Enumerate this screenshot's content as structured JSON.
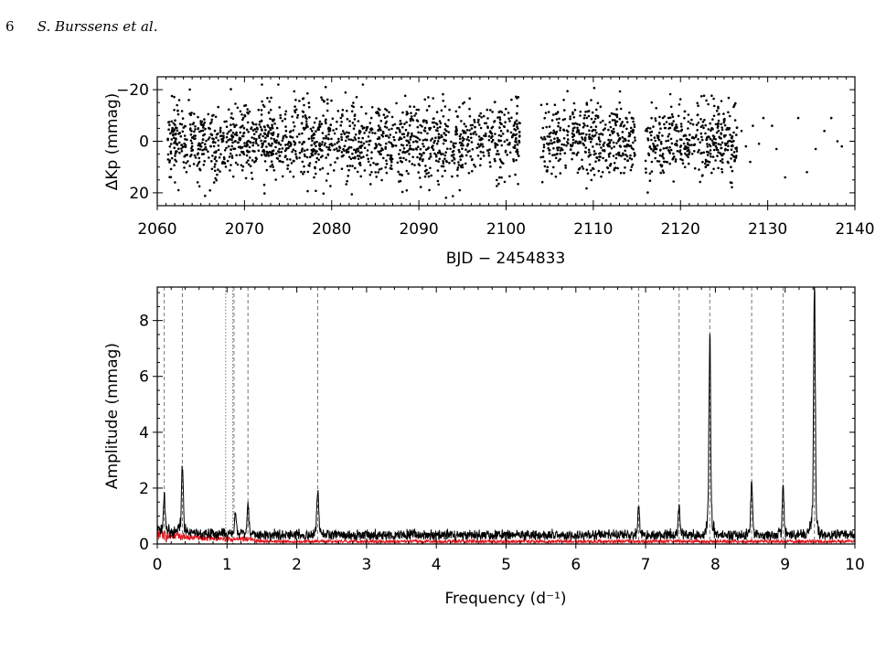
{
  "header": {
    "page_number": "6",
    "authors": "S. Burssens et al."
  },
  "chart_data": [
    {
      "type": "scatter",
      "xlabel": "BJD − 2454833",
      "ylabel": "ΔKp (mmag)",
      "xlim": [
        2060,
        2140
      ],
      "ylim": [
        25,
        -25
      ],
      "y_inverted": true,
      "xticks": [
        2060,
        2070,
        2080,
        2090,
        2100,
        2110,
        2120,
        2130,
        2140
      ],
      "yticks": [
        -20,
        0,
        20
      ],
      "ytick_labels": [
        "−20",
        "0",
        "20"
      ],
      "point_color": "#000000",
      "dense_segments": [
        {
          "start": 2061.2,
          "end": 2101.6,
          "sigma": 7.5
        },
        {
          "start": 2104.0,
          "end": 2114.8,
          "sigma": 7.0
        },
        {
          "start": 2116.0,
          "end": 2126.5,
          "sigma": 6.5
        }
      ],
      "sparse_points": [
        [
          2127.0,
          -4
        ],
        [
          2127.5,
          2
        ],
        [
          2128.0,
          8
        ],
        [
          2128.3,
          -6
        ],
        [
          2129.0,
          1
        ],
        [
          2129.5,
          -9
        ],
        [
          2130.5,
          -6
        ],
        [
          2131.0,
          3
        ],
        [
          2132.0,
          14
        ],
        [
          2133.5,
          -9
        ],
        [
          2134.5,
          12
        ],
        [
          2135.5,
          3
        ],
        [
          2136.5,
          -4
        ],
        [
          2137.3,
          -9
        ],
        [
          2138.0,
          0
        ],
        [
          2138.5,
          2
        ]
      ],
      "grid": false
    },
    {
      "type": "line",
      "xlabel": "Frequency (d⁻¹)",
      "ylabel": "Amplitude (mmag)",
      "xlim": [
        0,
        10
      ],
      "ylim": [
        0,
        9.2
      ],
      "xticks": [
        0,
        1,
        2,
        3,
        4,
        5,
        6,
        7,
        8,
        9,
        10
      ],
      "yticks": [
        0,
        2,
        4,
        6,
        8
      ],
      "series": [
        {
          "color": "#000000",
          "baseline": 0.35
        },
        {
          "color": "#e8141e",
          "baseline": 0.12
        }
      ],
      "peaks": [
        {
          "f": 0.1,
          "amp": 1.3
        },
        {
          "f": 0.36,
          "amp": 2.3
        },
        {
          "f": 1.12,
          "amp": 0.85
        },
        {
          "f": 1.3,
          "amp": 1.0
        },
        {
          "f": 2.3,
          "amp": 1.65
        },
        {
          "f": 6.9,
          "amp": 1.0
        },
        {
          "f": 7.48,
          "amp": 0.95
        },
        {
          "f": 7.92,
          "amp": 6.7
        },
        {
          "f": 8.52,
          "amp": 1.9
        },
        {
          "f": 8.97,
          "amp": 1.7
        },
        {
          "f": 9.42,
          "amp": 8.4
        }
      ],
      "dashed_markers": [
        0.1,
        0.36,
        1.1,
        1.3,
        2.3,
        6.9,
        7.48,
        7.92,
        8.52,
        8.97,
        9.42
      ],
      "dotted_markers": [
        0.98,
        1.08
      ],
      "grid": false
    }
  ]
}
